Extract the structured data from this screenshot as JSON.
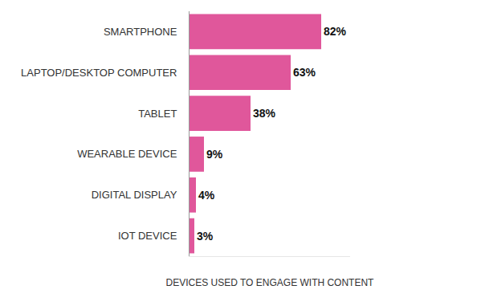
{
  "chart_data": {
    "type": "bar",
    "orientation": "horizontal",
    "categories": [
      "SMARTPHONE",
      "LAPTOP/DESKTOP COMPUTER",
      "TABLET",
      "WEARABLE DEVICE",
      "DIGITAL DISPLAY",
      "IOT DEVICE"
    ],
    "values": [
      82,
      63,
      38,
      9,
      4,
      3
    ],
    "value_labels": [
      "82%",
      "63%",
      "38%",
      "9%",
      "4%",
      "3%"
    ],
    "color": "#e0579b",
    "xlabel": "DEVICES USED TO ENGAGE WITH CONTENT",
    "xlim": [
      0,
      100
    ],
    "xticks": [],
    "data_labels": true,
    "tick_labels": "y",
    "grid": false
  }
}
